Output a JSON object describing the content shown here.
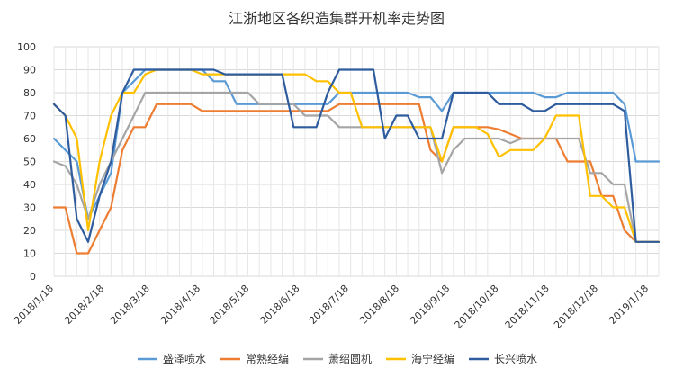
{
  "chart_data": {
    "type": "line",
    "title": "江浙地区各织造集群开机率走势图",
    "xlabel": "",
    "ylabel": "",
    "ylim": [
      0,
      100
    ],
    "yticks": [
      0,
      10,
      20,
      30,
      40,
      50,
      60,
      70,
      80,
      90,
      100
    ],
    "grid": true,
    "legend_position": "bottom",
    "x_dates": [
      "2018/1/18",
      "2018/1/25",
      "2018/2/1",
      "2018/2/8",
      "2018/2/15",
      "2018/2/22",
      "2018/3/1",
      "2018/3/8",
      "2018/3/15",
      "2018/3/22",
      "2018/3/29",
      "2018/4/5",
      "2018/4/12",
      "2018/4/19",
      "2018/4/26",
      "2018/5/3",
      "2018/5/10",
      "2018/5/17",
      "2018/5/24",
      "2018/5/31",
      "2018/6/7",
      "2018/6/14",
      "2018/6/21",
      "2018/6/28",
      "2018/7/5",
      "2018/7/12",
      "2018/7/19",
      "2018/7/26",
      "2018/8/2",
      "2018/8/9",
      "2018/8/16",
      "2018/8/23",
      "2018/8/30",
      "2018/9/6",
      "2018/9/13",
      "2018/9/20",
      "2018/9/27",
      "2018/10/4",
      "2018/10/11",
      "2018/10/18",
      "2018/10/25",
      "2018/11/1",
      "2018/11/8",
      "2018/11/15",
      "2018/11/22",
      "2018/11/29",
      "2018/12/6",
      "2018/12/13",
      "2018/12/20",
      "2018/12/27",
      "2019/1/3",
      "2019/1/10",
      "2019/1/17",
      "2019/1/24"
    ],
    "x_tick_labels": [
      "2018/1/18",
      "2018/2/18",
      "2018/3/18",
      "2018/4/18",
      "2018/5/18",
      "2018/6/18",
      "2018/7/18",
      "2018/8/18",
      "2018/9/18",
      "2018/10/18",
      "2018/11/18",
      "2018/12/18",
      "2019/1/18"
    ],
    "series": [
      {
        "name": "盛泽喷水",
        "color": "#5b9bd5",
        "values": [
          60,
          55,
          50,
          25,
          35,
          45,
          80,
          85,
          90,
          90,
          90,
          90,
          90,
          90,
          85,
          85,
          75,
          75,
          75,
          75,
          75,
          75,
          75,
          75,
          75,
          80,
          80,
          80,
          80,
          80,
          80,
          80,
          78,
          78,
          72,
          80,
          80,
          80,
          80,
          80,
          80,
          80,
          80,
          78,
          78,
          80,
          80,
          80,
          80,
          80,
          75,
          50,
          50,
          50
        ]
      },
      {
        "name": "常熟经编",
        "color": "#ed7d31",
        "values": [
          30,
          30,
          10,
          10,
          20,
          30,
          55,
          65,
          65,
          75,
          75,
          75,
          75,
          72,
          72,
          72,
          72,
          72,
          72,
          72,
          72,
          72,
          72,
          72,
          72,
          75,
          75,
          75,
          75,
          75,
          75,
          75,
          75,
          55,
          50,
          65,
          65,
          65,
          65,
          64,
          62,
          60,
          60,
          60,
          60,
          50,
          50,
          50,
          35,
          35,
          20,
          15,
          15,
          15
        ]
      },
      {
        "name": "萧绍圆机",
        "color": "#a5a5a5",
        "values": [
          50,
          48,
          40,
          25,
          40,
          50,
          60,
          70,
          80,
          80,
          80,
          80,
          80,
          80,
          80,
          80,
          80,
          80,
          75,
          75,
          75,
          75,
          70,
          70,
          70,
          65,
          65,
          65,
          65,
          65,
          65,
          65,
          65,
          65,
          45,
          55,
          60,
          60,
          60,
          60,
          58,
          60,
          60,
          60,
          60,
          60,
          60,
          45,
          45,
          40,
          40,
          15,
          15,
          15
        ]
      },
      {
        "name": "海宁经编",
        "color": "#ffc000",
        "values": [
          75,
          70,
          60,
          20,
          50,
          70,
          80,
          80,
          88,
          90,
          90,
          90,
          90,
          88,
          88,
          88,
          88,
          88,
          88,
          88,
          88,
          88,
          88,
          85,
          85,
          80,
          80,
          65,
          65,
          65,
          65,
          65,
          65,
          65,
          50,
          65,
          65,
          65,
          62,
          52,
          55,
          55,
          55,
          60,
          70,
          70,
          70,
          35,
          35,
          30,
          30,
          15,
          15,
          15
        ]
      },
      {
        "name": "长兴喷水",
        "color": "#2e5c9e",
        "values": [
          75,
          70,
          25,
          15,
          35,
          50,
          80,
          90,
          90,
          90,
          90,
          90,
          90,
          90,
          90,
          88,
          88,
          88,
          88,
          88,
          88,
          65,
          65,
          65,
          80,
          90,
          90,
          90,
          90,
          60,
          70,
          70,
          60,
          60,
          60,
          80,
          80,
          80,
          80,
          75,
          75,
          75,
          72,
          72,
          75,
          75,
          75,
          75,
          75,
          75,
          72,
          15,
          15,
          15
        ]
      }
    ]
  }
}
